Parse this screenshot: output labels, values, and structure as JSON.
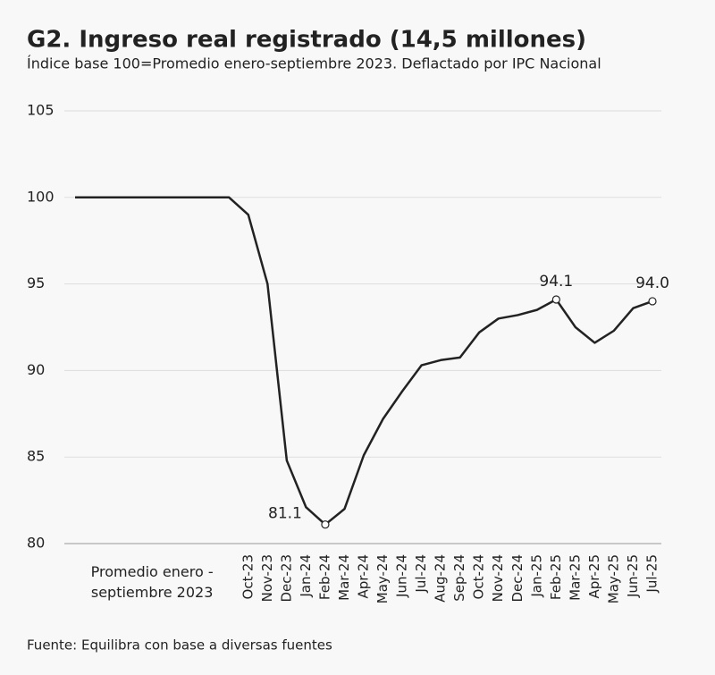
{
  "chart_data": {
    "type": "line",
    "title": "G2. Ingreso real registrado (14,5 millones)",
    "subtitle": "Índice base 100=Promedio enero-septiembre 2023. Deflactado por IPC Nacional",
    "source": "Fuente: Equilibra con base a diversas fuentes",
    "categories": [
      null,
      null,
      null,
      null,
      "Promedio enero -\nseptiembre 2023",
      null,
      null,
      null,
      null,
      "Oct-23",
      "Nov-23",
      "Dec-23",
      "Jan-24",
      "Feb-24",
      "Mar-24",
      "Apr-24",
      "May-24",
      "Jun-24",
      "Jul-24",
      "Aug-24",
      "Sep-24",
      "Oct-24",
      "Nov-24",
      "Dec-24",
      "Jan-25",
      "Feb-25",
      "Mar-25",
      "Apr-25",
      "May-25",
      "Jun-25",
      "Jul-25"
    ],
    "series": [
      {
        "name": "Ingreso real registrado",
        "color": "#222222",
        "values": [
          100,
          100,
          100,
          100,
          100,
          100,
          100,
          100,
          100,
          99.0,
          95.0,
          84.8,
          82.1,
          81.1,
          82.0,
          85.1,
          87.2,
          88.8,
          90.3,
          90.6,
          90.75,
          92.2,
          93.0,
          93.2,
          93.5,
          94.1,
          92.5,
          91.6,
          92.3,
          93.6,
          94.0
        ],
        "value_labels": [
          null,
          null,
          null,
          null,
          null,
          null,
          null,
          null,
          null,
          null,
          null,
          null,
          null,
          "81.1",
          null,
          null,
          null,
          null,
          null,
          null,
          null,
          null,
          null,
          null,
          null,
          "94.1",
          null,
          null,
          null,
          null,
          "94.0"
        ]
      }
    ],
    "ylim": [
      80,
      105
    ],
    "yticks": [
      80,
      85,
      90,
      95,
      100,
      105
    ],
    "grid": true
  }
}
